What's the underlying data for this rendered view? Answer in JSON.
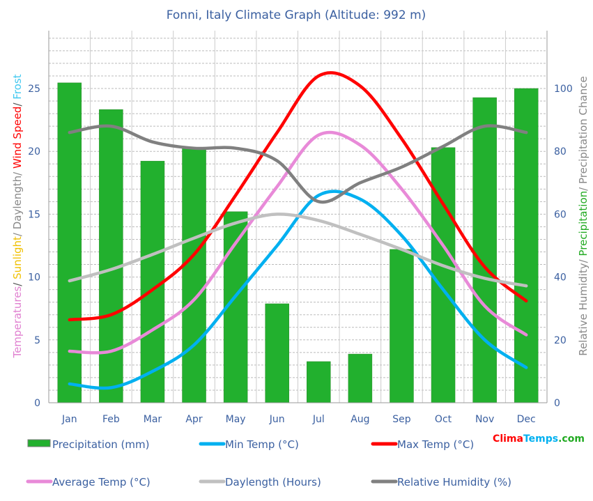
{
  "chart_data": {
    "type": "bar+line",
    "title": "Fonni, Italy Climate Graph (Altitude: 992 m)",
    "categories": [
      "Jan",
      "Feb",
      "Mar",
      "Apr",
      "May",
      "Jun",
      "Jul",
      "Aug",
      "Sep",
      "Oct",
      "Nov",
      "Dec"
    ],
    "left_axis": {
      "ylim": [
        0,
        25
      ],
      "ticks": [
        0,
        5,
        10,
        15,
        20,
        25
      ],
      "label_parts": [
        {
          "text": "Temperatures",
          "color": "#e080d0"
        },
        {
          "text": "/ ",
          "color": "#555555"
        },
        {
          "text": "Sunlight",
          "color": "#f0c000"
        },
        {
          "text": "/ Daylength/ ",
          "color": "#888888"
        },
        {
          "text": "Wind Speed",
          "color": "#ff0000"
        },
        {
          "text": "/ ",
          "color": "#555555"
        },
        {
          "text": "Frost",
          "color": "#40c8f0"
        }
      ]
    },
    "right_axis": {
      "ylim": [
        0,
        100
      ],
      "ticks": [
        0,
        20,
        40,
        60,
        80,
        100
      ],
      "label_parts": [
        {
          "text": "Relative Humidity/ ",
          "color": "#888888"
        },
        {
          "text": "Precipitation",
          "color": "#22aa22"
        },
        {
          "text": "/ Precipitation Chance",
          "color": "#888888"
        }
      ]
    },
    "grid": true,
    "legend_position": "bottom",
    "series": [
      {
        "name": "Precipitation (mm)",
        "type": "bar",
        "axis": "right",
        "color": "#22b02e",
        "values": [
          101.8,
          93.3,
          76.9,
          81.2,
          60.8,
          31.5,
          13.1,
          15.5,
          48.8,
          81.2,
          97.1,
          100
        ]
      },
      {
        "name": "Min Temp (°C)",
        "type": "line",
        "axis": "left",
        "color": "#00b0f0",
        "values": [
          1.5,
          1.2,
          2.5,
          4.6,
          8.5,
          12.5,
          16.5,
          16.2,
          13.3,
          9.0,
          5.0,
          2.8
        ]
      },
      {
        "name": "Max Temp (°C)",
        "type": "line",
        "axis": "left",
        "color": "#ff0000",
        "values": [
          6.6,
          7.0,
          9.0,
          11.8,
          16.5,
          21.5,
          26.0,
          25.2,
          21.0,
          15.8,
          10.8,
          8.1
        ]
      },
      {
        "name": "Average Temp (°C)",
        "type": "line",
        "axis": "left",
        "color": "#e88ad8",
        "values": [
          4.1,
          4.1,
          5.8,
          8.2,
          12.7,
          17.2,
          21.3,
          20.5,
          17.0,
          12.5,
          7.7,
          5.4
        ]
      },
      {
        "name": "Daylength (Hours)",
        "type": "line",
        "axis": "left",
        "color": "#c0c0c0",
        "values": [
          9.7,
          10.6,
          11.8,
          13.1,
          14.3,
          15.0,
          14.5,
          13.4,
          12.2,
          10.9,
          9.9,
          9.3
        ]
      },
      {
        "name": "Relative Humidity (%)",
        "type": "line",
        "axis": "right",
        "color": "#808080",
        "values": [
          86,
          88,
          83,
          81,
          81,
          77,
          64,
          70,
          75,
          81.6,
          88,
          86
        ]
      }
    ]
  },
  "logo": {
    "parts": [
      {
        "text": "Clima",
        "color": "#ff0000"
      },
      {
        "text": "Temps",
        "color": "#00b0f0"
      },
      {
        "text": ".com",
        "color": "#22aa22"
      }
    ]
  }
}
